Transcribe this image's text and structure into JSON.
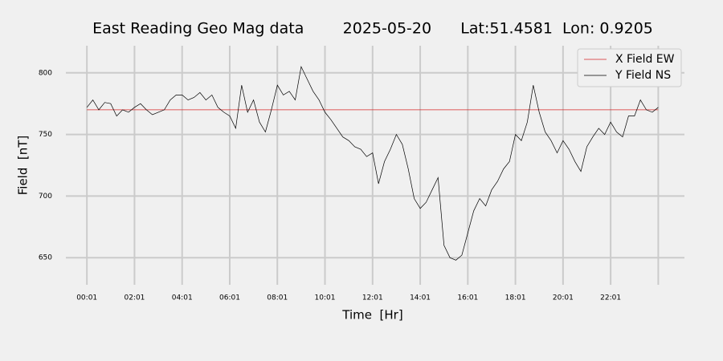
{
  "chart_data": {
    "type": "line",
    "title": "East Reading Geo Mag data        2025-05-20      Lat:51.4581  Lon: 0.9205",
    "x_label": "Time  [Hr]",
    "y_label": "Field  [nT]",
    "x": [
      1,
      16,
      31,
      46,
      61,
      76,
      91,
      106,
      121,
      136,
      151,
      166,
      181,
      196,
      211,
      226,
      241,
      256,
      271,
      286,
      301,
      316,
      331,
      346,
      361,
      376,
      391,
      406,
      421,
      436,
      451,
      466,
      481,
      496,
      511,
      526,
      541,
      556,
      571,
      586,
      601,
      616,
      631,
      646,
      661,
      676,
      691,
      706,
      721,
      736,
      751,
      766,
      781,
      796,
      811,
      826,
      841,
      856,
      871,
      886,
      901,
      916,
      931,
      946,
      961,
      976,
      991,
      1006,
      1021,
      1036,
      1051,
      1066,
      1081,
      1096,
      1111,
      1126,
      1141,
      1156,
      1171,
      1186,
      1201,
      1216,
      1231,
      1246,
      1261,
      1276,
      1291,
      1306,
      1321,
      1336,
      1351,
      1366,
      1381,
      1396,
      1411,
      1426,
      1441
    ],
    "series": [
      {
        "name": "X Field EW",
        "color": "#d62728",
        "values": [
          770,
          770,
          770,
          770,
          770,
          770,
          770,
          770,
          770,
          770,
          770,
          770,
          770,
          770,
          770,
          770,
          770,
          770,
          770,
          770,
          770,
          770,
          770,
          770,
          770,
          770,
          770,
          770,
          770,
          770,
          770,
          770,
          770,
          770,
          770,
          770,
          770,
          770,
          770,
          770,
          770,
          770,
          770,
          770,
          770,
          770,
          770,
          770,
          770,
          770,
          770,
          770,
          770,
          770,
          770,
          770,
          770,
          770,
          770,
          770,
          770,
          770,
          770,
          770,
          770,
          770,
          770,
          770,
          770,
          770,
          770,
          770,
          770,
          770,
          770,
          770,
          770,
          770,
          770,
          770,
          770,
          770,
          770,
          770,
          770,
          770,
          770,
          770,
          770,
          770,
          770,
          770,
          770,
          770,
          770,
          770,
          770
        ]
      },
      {
        "name": "Y Field NS",
        "color": "#000000",
        "values": [
          772,
          778,
          770,
          776,
          775,
          765,
          770,
          768,
          772,
          775,
          770,
          766,
          768,
          770,
          778,
          782,
          782,
          778,
          780,
          784,
          778,
          782,
          772,
          768,
          765,
          755,
          790,
          768,
          778,
          760,
          752,
          770,
          790,
          782,
          785,
          778,
          805,
          795,
          785,
          778,
          768,
          762,
          755,
          748,
          745,
          740,
          738,
          732,
          735,
          710,
          728,
          738,
          750,
          742,
          722,
          698,
          690,
          695,
          705,
          715,
          660,
          650,
          648,
          652,
          670,
          688,
          698,
          692,
          705,
          712,
          722,
          728,
          750,
          745,
          760,
          790,
          768,
          752,
          745,
          735,
          745,
          738,
          728,
          720,
          740,
          748,
          755,
          750,
          760,
          752,
          748,
          765,
          765,
          778,
          770,
          768,
          772
        ]
      }
    ],
    "xlim": [
      -52,
      1507
    ],
    "ylim": [
      628,
      822
    ],
    "xticks": [
      {
        "value": 1,
        "label": "00:01"
      },
      {
        "value": 121,
        "label": "02:01"
      },
      {
        "value": 241,
        "label": "04:01"
      },
      {
        "value": 361,
        "label": "06:01"
      },
      {
        "value": 481,
        "label": "08:01"
      },
      {
        "value": 601,
        "label": "10:01"
      },
      {
        "value": 721,
        "label": "12:01"
      },
      {
        "value": 841,
        "label": "14:01"
      },
      {
        "value": 961,
        "label": "16:01"
      },
      {
        "value": 1081,
        "label": "18:01"
      },
      {
        "value": 1201,
        "label": "20:01"
      },
      {
        "value": 1321,
        "label": "22:01"
      },
      {
        "value": 1441,
        "label": null
      }
    ],
    "yticks": [
      650,
      700,
      750,
      800
    ],
    "grid": true,
    "legend": "upper right"
  }
}
